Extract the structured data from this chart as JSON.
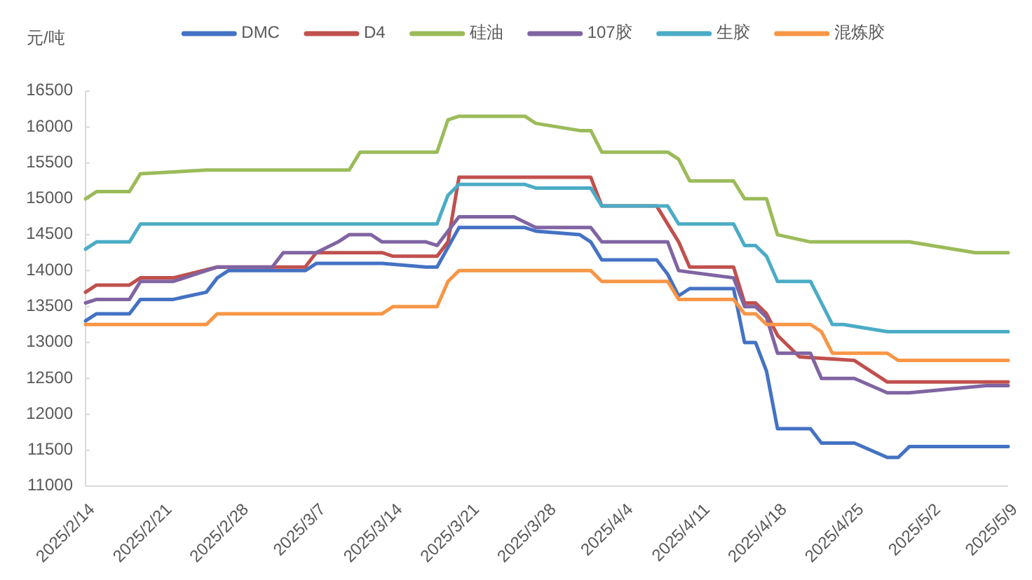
{
  "chart_data": {
    "type": "line",
    "ylabel": "元/吨",
    "legend": "top",
    "xlim": [
      "2025-02-14",
      "2025-05-09"
    ],
    "xticks": [
      {
        "value": "2025-02-14",
        "label": "2025/2/14"
      },
      {
        "value": "2025-02-21",
        "label": "2025/2/21"
      },
      {
        "value": "2025-02-28",
        "label": "2025/2/28"
      },
      {
        "value": "2025-03-07",
        "label": "2025/3/7"
      },
      {
        "value": "2025-03-14",
        "label": "2025/3/14"
      },
      {
        "value": "2025-03-21",
        "label": "2025/3/21"
      },
      {
        "value": "2025-03-28",
        "label": "2025/3/28"
      },
      {
        "value": "2025-04-04",
        "label": "2025/4/4"
      },
      {
        "value": "2025-04-11",
        "label": "2025/4/11"
      },
      {
        "value": "2025-04-18",
        "label": "2025/4/18"
      },
      {
        "value": "2025-04-25",
        "label": "2025/4/25"
      },
      {
        "value": "2025-05-02",
        "label": "2025/5/2"
      },
      {
        "value": "2025-05-09",
        "label": "2025/5/9"
      }
    ],
    "ylim": [
      11000,
      16500
    ],
    "yticks": [
      11000,
      11500,
      12000,
      12500,
      13000,
      13500,
      14000,
      14500,
      15000,
      15500,
      16000,
      16500
    ],
    "series": [
      {
        "name": "DMC",
        "color": "#4472c4",
        "x": [
          "2025-02-14",
          "2025-02-15",
          "2025-02-18",
          "2025-02-19",
          "2025-02-22",
          "2025-02-25",
          "2025-02-26",
          "2025-02-27",
          "2025-03-06",
          "2025-03-07",
          "2025-03-13",
          "2025-03-17",
          "2025-03-18",
          "2025-03-20",
          "2025-03-26",
          "2025-03-27",
          "2025-03-31",
          "2025-04-01",
          "2025-04-02",
          "2025-04-07",
          "2025-04-08",
          "2025-04-09",
          "2025-04-10",
          "2025-04-14",
          "2025-04-15",
          "2025-04-16",
          "2025-04-17",
          "2025-04-18",
          "2025-04-21",
          "2025-04-22",
          "2025-04-25",
          "2025-04-28",
          "2025-04-29",
          "2025-04-30",
          "2025-05-09"
        ],
        "values": [
          13300,
          13400,
          13400,
          13600,
          13600,
          13700,
          13900,
          14000,
          14000,
          14100,
          14100,
          14050,
          14050,
          14600,
          14600,
          14550,
          14500,
          14400,
          14150,
          14150,
          13950,
          13650,
          13750,
          13750,
          13000,
          13000,
          12600,
          11800,
          11800,
          11600,
          11600,
          11400,
          11400,
          11550,
          11550
        ]
      },
      {
        "name": "D4",
        "color": "#c0504d",
        "x": [
          "2025-02-14",
          "2025-02-15",
          "2025-02-18",
          "2025-02-19",
          "2025-02-22",
          "2025-02-26",
          "2025-03-06",
          "2025-03-07",
          "2025-03-13",
          "2025-03-14",
          "2025-03-18",
          "2025-03-19",
          "2025-03-20",
          "2025-04-01",
          "2025-04-02",
          "2025-04-07",
          "2025-04-09",
          "2025-04-10",
          "2025-04-14",
          "2025-04-15",
          "2025-04-16",
          "2025-04-17",
          "2025-04-18",
          "2025-04-20",
          "2025-04-25",
          "2025-04-28",
          "2025-05-09"
        ],
        "values": [
          13700,
          13800,
          13800,
          13900,
          13900,
          14050,
          14050,
          14250,
          14250,
          14200,
          14200,
          14400,
          15300,
          15300,
          14900,
          14900,
          14400,
          14050,
          14050,
          13550,
          13550,
          13400,
          13100,
          12800,
          12750,
          12450,
          12450
        ]
      },
      {
        "name": "硅油",
        "color": "#9bbb59",
        "x": [
          "2025-02-14",
          "2025-02-15",
          "2025-02-18",
          "2025-02-19",
          "2025-02-25",
          "2025-03-10",
          "2025-03-11",
          "2025-03-18",
          "2025-03-19",
          "2025-03-20",
          "2025-03-26",
          "2025-03-27",
          "2025-03-31",
          "2025-04-01",
          "2025-04-02",
          "2025-04-08",
          "2025-04-09",
          "2025-04-10",
          "2025-04-14",
          "2025-04-15",
          "2025-04-17",
          "2025-04-18",
          "2025-04-21",
          "2025-04-30",
          "2025-05-06",
          "2025-05-09"
        ],
        "values": [
          15000,
          15100,
          15100,
          15350,
          15400,
          15400,
          15650,
          15650,
          16100,
          16150,
          16150,
          16050,
          15950,
          15950,
          15650,
          15650,
          15550,
          15250,
          15250,
          15000,
          15000,
          14500,
          14400,
          14400,
          14250,
          14250
        ]
      },
      {
        "name": "107胶",
        "color": "#8064a2",
        "x": [
          "2025-02-14",
          "2025-02-15",
          "2025-02-18",
          "2025-02-19",
          "2025-02-22",
          "2025-02-26",
          "2025-03-03",
          "2025-03-04",
          "2025-03-07",
          "2025-03-09",
          "2025-03-10",
          "2025-03-12",
          "2025-03-13",
          "2025-03-17",
          "2025-03-18",
          "2025-03-19",
          "2025-03-20",
          "2025-03-25",
          "2025-03-27",
          "2025-04-01",
          "2025-04-02",
          "2025-04-08",
          "2025-04-09",
          "2025-04-14",
          "2025-04-15",
          "2025-04-16",
          "2025-04-17",
          "2025-04-18",
          "2025-04-21",
          "2025-04-22",
          "2025-04-25",
          "2025-04-28",
          "2025-04-30",
          "2025-05-07",
          "2025-05-09"
        ],
        "values": [
          13550,
          13600,
          13600,
          13850,
          13850,
          14050,
          14050,
          14250,
          14250,
          14400,
          14500,
          14500,
          14400,
          14400,
          14350,
          14550,
          14750,
          14750,
          14600,
          14600,
          14400,
          14400,
          14000,
          13900,
          13500,
          13500,
          13350,
          12850,
          12850,
          12500,
          12500,
          12300,
          12300,
          12400,
          12400
        ]
      },
      {
        "name": "生胶",
        "color": "#4bacc6",
        "x": [
          "2025-02-14",
          "2025-02-15",
          "2025-02-18",
          "2025-02-19",
          "2025-03-18",
          "2025-03-19",
          "2025-03-20",
          "2025-03-26",
          "2025-03-27",
          "2025-04-01",
          "2025-04-02",
          "2025-04-08",
          "2025-04-09",
          "2025-04-14",
          "2025-04-15",
          "2025-04-16",
          "2025-04-17",
          "2025-04-18",
          "2025-04-21",
          "2025-04-23",
          "2025-04-24",
          "2025-04-28",
          "2025-05-09"
        ],
        "values": [
          14300,
          14400,
          14400,
          14650,
          14650,
          15050,
          15200,
          15200,
          15150,
          15150,
          14900,
          14900,
          14650,
          14650,
          14350,
          14350,
          14200,
          13850,
          13850,
          13250,
          13250,
          13150,
          13150
        ]
      },
      {
        "name": "混炼胶",
        "color": "#f79646",
        "x": [
          "2025-02-14",
          "2025-02-25",
          "2025-02-26",
          "2025-03-13",
          "2025-03-14",
          "2025-03-18",
          "2025-03-19",
          "2025-03-20",
          "2025-04-01",
          "2025-04-02",
          "2025-04-08",
          "2025-04-09",
          "2025-04-14",
          "2025-04-15",
          "2025-04-16",
          "2025-04-17",
          "2025-04-21",
          "2025-04-22",
          "2025-04-23",
          "2025-04-28",
          "2025-04-29",
          "2025-05-09"
        ],
        "values": [
          13250,
          13250,
          13400,
          13400,
          13500,
          13500,
          13850,
          14000,
          14000,
          13850,
          13850,
          13600,
          13600,
          13400,
          13400,
          13250,
          13250,
          13150,
          12850,
          12850,
          12750,
          12750
        ]
      }
    ]
  }
}
